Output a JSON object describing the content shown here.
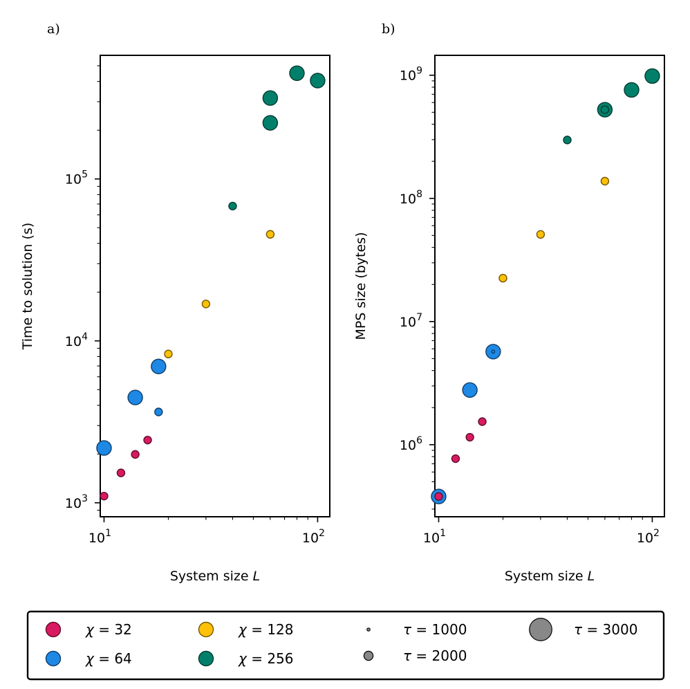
{
  "colors": {
    "chi_32": "#d81b60",
    "chi_64": "#1e88e5",
    "chi_128": "#ffc107",
    "chi_256": "#00806a",
    "tau_marker": "#888888"
  },
  "chart_data": [
    {
      "type": "scatter",
      "panel_tag": "a)",
      "xlabel_prefix": "System size ",
      "xlabel_var": "L",
      "ylabel": "Time to solution (s)",
      "xscale": "log",
      "yscale": "log",
      "xlim": [
        9.6,
        114
      ],
      "ylim": [
        820,
        580000
      ],
      "xticks": [
        {
          "base": "10",
          "exp": "1"
        },
        {
          "base": "10",
          "exp": "2"
        }
      ],
      "yticks": [
        {
          "base": "10",
          "exp": "3"
        },
        {
          "base": "10",
          "exp": "4"
        },
        {
          "base": "10",
          "exp": "5"
        }
      ],
      "grid": false,
      "series": [
        {
          "name": "χ = 32",
          "color_key": "chi_32",
          "points": [
            {
              "x": 10,
              "y": 1100,
              "tau": 2000
            },
            {
              "x": 12,
              "y": 1530,
              "tau": 2000
            },
            {
              "x": 14,
              "y": 1990,
              "tau": 2000
            },
            {
              "x": 16,
              "y": 2440,
              "tau": 2000
            }
          ]
        },
        {
          "name": "χ = 64",
          "color_key": "chi_64",
          "points": [
            {
              "x": 10,
              "y": 2180,
              "tau": 3000
            },
            {
              "x": 14,
              "y": 4470,
              "tau": 3000
            },
            {
              "x": 18,
              "y": 6950,
              "tau": 3000
            },
            {
              "x": 18,
              "y": 3640,
              "tau": 2000
            }
          ]
        },
        {
          "name": "χ = 128",
          "color_key": "chi_128",
          "points": [
            {
              "x": 20,
              "y": 8300,
              "tau": 2000
            },
            {
              "x": 30,
              "y": 16900,
              "tau": 2000
            },
            {
              "x": 60,
              "y": 45500,
              "tau": 2000
            }
          ]
        },
        {
          "name": "χ = 256",
          "color_key": "chi_256",
          "points": [
            {
              "x": 40,
              "y": 68000,
              "tau": 2000
            },
            {
              "x": 60,
              "y": 222000,
              "tau": 3000
            },
            {
              "x": 60,
              "y": 316000,
              "tau": 3000
            },
            {
              "x": 80,
              "y": 450000,
              "tau": 3000
            },
            {
              "x": 100,
              "y": 405000,
              "tau": 3000
            }
          ]
        }
      ]
    },
    {
      "type": "scatter",
      "panel_tag": "b)",
      "xlabel_prefix": "System size ",
      "xlabel_var": "L",
      "ylabel": "MPS size (bytes)",
      "xscale": "log",
      "yscale": "log",
      "xlim": [
        9.6,
        114
      ],
      "ylim": [
        260000,
        1450000000
      ],
      "xticks": [
        {
          "base": "10",
          "exp": "1"
        },
        {
          "base": "10",
          "exp": "2"
        }
      ],
      "yticks": [
        {
          "base": "10",
          "exp": "6"
        },
        {
          "base": "10",
          "exp": "7"
        },
        {
          "base": "10",
          "exp": "8"
        },
        {
          "base": "10",
          "exp": "9"
        }
      ],
      "grid": false,
      "series": [
        {
          "name": "χ = 32",
          "color_key": "chi_32",
          "points": [
            {
              "x": 10,
              "y": 380000,
              "tau": 2000
            },
            {
              "x": 12,
              "y": 770000,
              "tau": 2000
            },
            {
              "x": 14,
              "y": 1150000,
              "tau": 2000
            },
            {
              "x": 16,
              "y": 1540000,
              "tau": 2000
            }
          ]
        },
        {
          "name": "χ = 64",
          "color_key": "chi_64",
          "points": [
            {
              "x": 10,
              "y": 380000,
              "tau": 3000
            },
            {
              "x": 14,
              "y": 2780000,
              "tau": 3000
            },
            {
              "x": 18,
              "y": 5700000,
              "tau": 3000
            },
            {
              "x": 18,
              "y": 5700000,
              "tau": 1000
            }
          ]
        },
        {
          "name": "χ = 128",
          "color_key": "chi_128",
          "points": [
            {
              "x": 20,
              "y": 22500000,
              "tau": 2000
            },
            {
              "x": 30,
              "y": 51000000,
              "tau": 2000
            },
            {
              "x": 60,
              "y": 138000000,
              "tau": 2000
            }
          ]
        },
        {
          "name": "χ = 256",
          "color_key": "chi_256",
          "points": [
            {
              "x": 40,
              "y": 298000000,
              "tau": 2000
            },
            {
              "x": 60,
              "y": 525000000,
              "tau": 3000
            },
            {
              "x": 60,
              "y": 525000000,
              "tau": 2000
            },
            {
              "x": 80,
              "y": 760000000,
              "tau": 3000
            },
            {
              "x": 100,
              "y": 985000000,
              "tau": 3000
            }
          ]
        }
      ]
    }
  ],
  "legend": {
    "placement": "bottom",
    "entries": [
      {
        "kind": "color",
        "color_key": "chi_32",
        "sym": "χ",
        "text": " = 32"
      },
      {
        "kind": "color",
        "color_key": "chi_64",
        "sym": "χ",
        "text": " = 64"
      },
      {
        "kind": "color",
        "color_key": "chi_128",
        "sym": "χ",
        "text": " = 128"
      },
      {
        "kind": "color",
        "color_key": "chi_256",
        "sym": "χ",
        "text": " = 256"
      },
      {
        "kind": "size",
        "tau": 1000,
        "sym": "τ",
        "text": " = 1000"
      },
      {
        "kind": "size",
        "tau": 2000,
        "sym": "τ",
        "text": " = 2000"
      },
      {
        "kind": "size",
        "tau": 3000,
        "sym": "τ",
        "text": " = 3000"
      }
    ]
  }
}
